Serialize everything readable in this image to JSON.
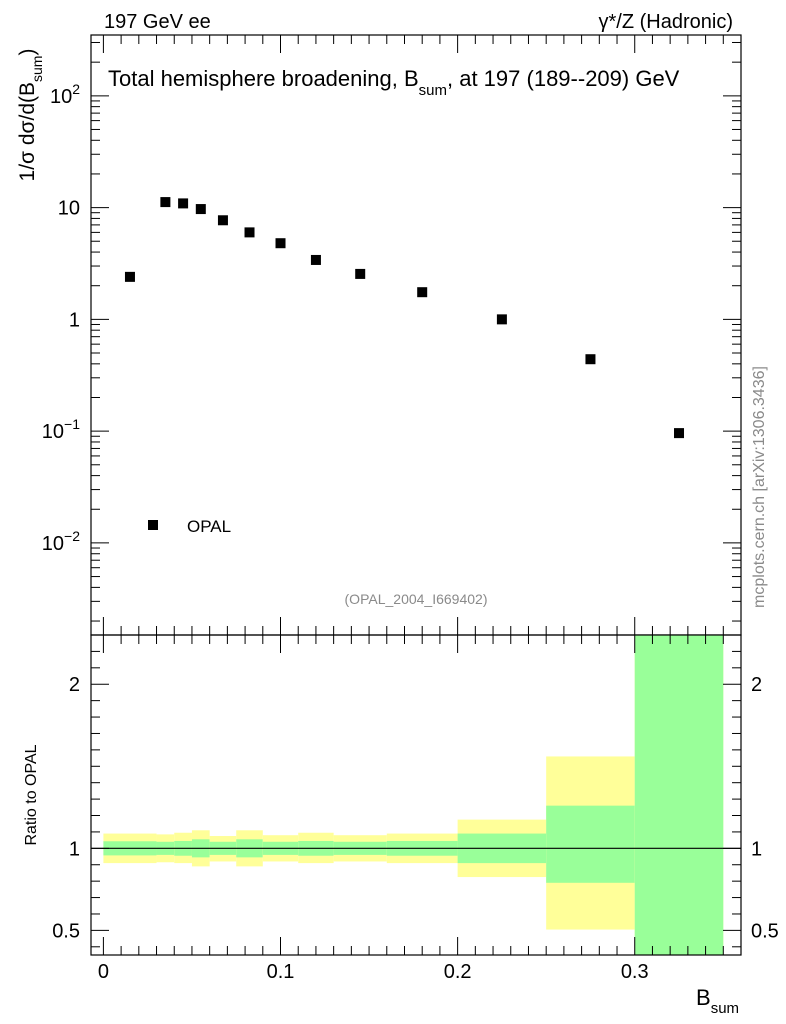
{
  "header": {
    "left": "197 GeV ee",
    "right": "γ*/Z (Hadronic)"
  },
  "side_label": "mcplots.cern.ch [arXiv:1306.3436]",
  "chart_data": [
    {
      "type": "scatter",
      "yscale": "log",
      "title_main": "Total hemisphere broadening, B",
      "title_sub": "sum",
      "title_rest": ", at 197 (189--209) GeV",
      "ylabel_main": "1/σ  dσ/d(B",
      "ylabel_sub": "sum",
      "ylabel_end": ")",
      "analysis_id": "(OPAL_2004_I669402)",
      "legend": "OPAL",
      "ylim": [
        0.0015,
        350
      ],
      "xlim": [
        -0.007,
        0.36
      ],
      "yticks": [
        {
          "value": 100,
          "base": "10",
          "exp": "2"
        },
        {
          "value": 10,
          "base": "10",
          "exp": ""
        },
        {
          "value": 1,
          "base": "1",
          "exp": ""
        },
        {
          "value": 0.1,
          "base": "10",
          "exp": "−1"
        },
        {
          "value": 0.01,
          "base": "10",
          "exp": "−2"
        }
      ],
      "series": [
        {
          "name": "OPAL",
          "x": [
            0.015,
            0.035,
            0.045,
            0.055,
            0.0675,
            0.0825,
            0.1,
            0.12,
            0.145,
            0.18,
            0.225,
            0.275,
            0.325
          ],
          "y": [
            2.4,
            11.2,
            10.9,
            9.7,
            7.7,
            6.0,
            4.8,
            3.4,
            2.55,
            1.75,
            1.0,
            0.44,
            0.096
          ]
        }
      ]
    },
    {
      "type": "area",
      "ylabel": "Ratio to OPAL",
      "xlabel_main": "B",
      "xlabel_sub": "sum",
      "xlim": [
        -0.007,
        0.36
      ],
      "ylim": [
        0.35,
        2.3
      ],
      "yticks": [
        "0.5",
        "1",
        "2"
      ],
      "ytick_values": [
        0.5,
        1,
        2
      ],
      "xticks": [
        "0",
        "0.1",
        "0.2",
        "0.3"
      ],
      "xtick_values": [
        0,
        0.1,
        0.2,
        0.3
      ],
      "reference_line": 1,
      "colors": {
        "inner": "#99ff99",
        "outer": "#ffff99"
      },
      "bins": [
        {
          "lo": 0.0,
          "hi": 0.03,
          "green": [
            0.957,
            1.043
          ],
          "yellow": [
            0.91,
            1.09
          ]
        },
        {
          "lo": 0.03,
          "hi": 0.04,
          "green": [
            0.96,
            1.04
          ],
          "yellow": [
            0.915,
            1.085
          ]
        },
        {
          "lo": 0.04,
          "hi": 0.05,
          "green": [
            0.955,
            1.045
          ],
          "yellow": [
            0.91,
            1.095
          ]
        },
        {
          "lo": 0.05,
          "hi": 0.06,
          "green": [
            0.945,
            1.055
          ],
          "yellow": [
            0.89,
            1.11
          ]
        },
        {
          "lo": 0.06,
          "hi": 0.075,
          "green": [
            0.96,
            1.04
          ],
          "yellow": [
            0.92,
            1.075
          ]
        },
        {
          "lo": 0.075,
          "hi": 0.09,
          "green": [
            0.945,
            1.055
          ],
          "yellow": [
            0.89,
            1.11
          ]
        },
        {
          "lo": 0.09,
          "hi": 0.11,
          "green": [
            0.96,
            1.04
          ],
          "yellow": [
            0.92,
            1.08
          ]
        },
        {
          "lo": 0.11,
          "hi": 0.13,
          "green": [
            0.955,
            1.045
          ],
          "yellow": [
            0.91,
            1.095
          ]
        },
        {
          "lo": 0.13,
          "hi": 0.16,
          "green": [
            0.96,
            1.04
          ],
          "yellow": [
            0.92,
            1.08
          ]
        },
        {
          "lo": 0.16,
          "hi": 0.2,
          "green": [
            0.955,
            1.045
          ],
          "yellow": [
            0.91,
            1.09
          ]
        },
        {
          "lo": 0.2,
          "hi": 0.25,
          "green": [
            0.91,
            1.09
          ],
          "yellow": [
            0.825,
            1.175
          ]
        },
        {
          "lo": 0.25,
          "hi": 0.3,
          "green": [
            0.79,
            1.26
          ],
          "yellow": [
            0.505,
            1.56
          ]
        },
        {
          "lo": 0.3,
          "hi": 0.35,
          "green": [
            0.35,
            2.3
          ],
          "yellow": [
            0.35,
            2.3
          ]
        }
      ]
    }
  ]
}
